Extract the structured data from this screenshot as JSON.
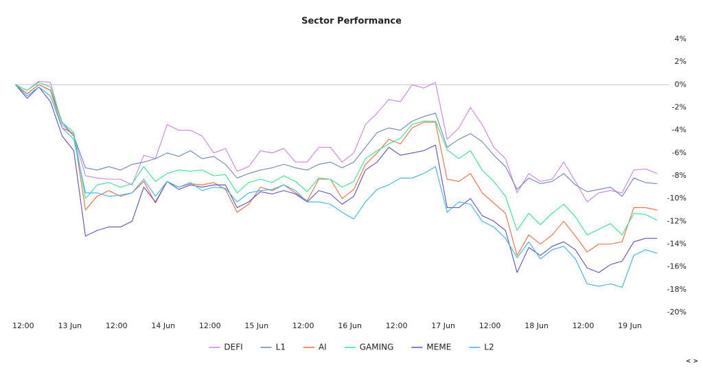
{
  "chart_data": {
    "type": "line",
    "title": "Sector Performance",
    "x": [
      10,
      13,
      16,
      19,
      22,
      25,
      28,
      31,
      34,
      37,
      40,
      43,
      46,
      49,
      52,
      55,
      58,
      61,
      64,
      67,
      70,
      73,
      76,
      79,
      82,
      85,
      88,
      91,
      94,
      97,
      100,
      103,
      106,
      109,
      112,
      115,
      118,
      121,
      124,
      127,
      130,
      133,
      136,
      139,
      142,
      145,
      148,
      151,
      154,
      157,
      160,
      163,
      166,
      169,
      172,
      175
    ],
    "xlim": [
      8.5,
      178.5
    ],
    "xticks": [
      {
        "value": 12,
        "label": "12:00"
      },
      {
        "value": 24,
        "label": "13 Jun"
      },
      {
        "value": 36,
        "label": "12:00"
      },
      {
        "value": 48,
        "label": "14 Jun"
      },
      {
        "value": 60,
        "label": "12:00"
      },
      {
        "value": 72,
        "label": "15 Jun"
      },
      {
        "value": 84,
        "label": "12:00"
      },
      {
        "value": 96,
        "label": "16 Jun"
      },
      {
        "value": 108,
        "label": "12:00"
      },
      {
        "value": 120,
        "label": "17 Jun"
      },
      {
        "value": 132,
        "label": "12:00"
      },
      {
        "value": 144,
        "label": "18 Jun"
      },
      {
        "value": 156,
        "label": "12:00"
      },
      {
        "value": 168,
        "label": "19 Jun"
      }
    ],
    "ylim": [
      -20,
      4
    ],
    "yticks": [
      {
        "value": 4,
        "label": "4%"
      },
      {
        "value": 2,
        "label": "2%"
      },
      {
        "value": 0,
        "label": "0%"
      },
      {
        "value": -2,
        "label": "-2%"
      },
      {
        "value": -4,
        "label": "-4%"
      },
      {
        "value": -6,
        "label": "-6%"
      },
      {
        "value": -8,
        "label": "-8%"
      },
      {
        "value": -10,
        "label": "-10%"
      },
      {
        "value": -12,
        "label": "-12%"
      },
      {
        "value": -14,
        "label": "-14%"
      },
      {
        "value": -16,
        "label": "-16%"
      },
      {
        "value": -18,
        "label": "-18%"
      },
      {
        "value": -20,
        "label": "-20%"
      }
    ],
    "grid": false,
    "zero_line": true,
    "legend": "bottom",
    "series": [
      {
        "name": "DEFI",
        "color": "#d17ef0",
        "values": [
          0,
          -0.5,
          0.3,
          0.2,
          -3.5,
          -4.5,
          -8,
          -8.2,
          -8.3,
          -8.3,
          -8.8,
          -6.2,
          -6.5,
          -3.5,
          -4,
          -4,
          -4.5,
          -6,
          -5.6,
          -7.6,
          -7.2,
          -5.8,
          -6,
          -5.6,
          -6.8,
          -6.8,
          -5.5,
          -5.5,
          -6.8,
          -6,
          -3.5,
          -2.5,
          -1.3,
          -1.5,
          0,
          -0.3,
          0.2,
          -4.8,
          -3.8,
          -2,
          -3.5,
          -5.5,
          -6.5,
          -9.5,
          -7.8,
          -8.5,
          -8.3,
          -6.8,
          -8.5,
          -10.3,
          -9.5,
          -9.3,
          -9.5,
          -7.5,
          -7.4,
          -7.8
        ]
      },
      {
        "name": "L1",
        "color": "#6b86b8",
        "values": [
          0,
          -0.8,
          0,
          -0.5,
          -3.3,
          -4.5,
          -7.3,
          -7.5,
          -7.2,
          -7.5,
          -7,
          -6.8,
          -6.5,
          -6,
          -6.3,
          -5.8,
          -6.5,
          -6.3,
          -7,
          -8.2,
          -7.8,
          -7.5,
          -7.3,
          -7,
          -7.3,
          -7.5,
          -7,
          -6.8,
          -7.3,
          -6.8,
          -5.5,
          -4.2,
          -3.8,
          -4,
          -3.2,
          -2.8,
          -2.5,
          -5.5,
          -4.8,
          -4.3,
          -5,
          -6.2,
          -7.2,
          -9.2,
          -8.2,
          -8.7,
          -8.5,
          -7.8,
          -8.8,
          -9.4,
          -9.2,
          -9,
          -9.8,
          -8.2,
          -8.6,
          -8.7
        ]
      },
      {
        "name": "AI",
        "color": "#f26b3a",
        "values": [
          0,
          -0.8,
          0,
          -0.5,
          -3.8,
          -4.3,
          -11,
          -9.8,
          -9.3,
          -9.8,
          -9.5,
          -8.5,
          -10.4,
          -8.5,
          -9,
          -8.7,
          -8.8,
          -8.6,
          -9.2,
          -11.2,
          -10.5,
          -9,
          -9.3,
          -8.8,
          -9.5,
          -10.2,
          -8.3,
          -8.3,
          -10,
          -9.2,
          -7,
          -6,
          -4.8,
          -5.2,
          -3.8,
          -3.3,
          -3.3,
          -8.3,
          -8.5,
          -7.8,
          -9.5,
          -10.4,
          -11.3,
          -15,
          -13.2,
          -14,
          -13.2,
          -12,
          -13.3,
          -14.7,
          -14,
          -14,
          -13.8,
          -10.8,
          -10.8,
          -11
        ]
      },
      {
        "name": "GAMING",
        "color": "#2ee88a",
        "values": [
          0,
          -0.5,
          0.2,
          -0.2,
          -3.3,
          -4.2,
          -10,
          -8.8,
          -8.6,
          -9,
          -8.7,
          -7.2,
          -8.5,
          -7.8,
          -7.5,
          -7.6,
          -7.5,
          -8,
          -7.9,
          -9.5,
          -8.6,
          -8.3,
          -8.6,
          -8,
          -8.5,
          -9.4,
          -8.2,
          -8.3,
          -9,
          -8.5,
          -6.5,
          -5.8,
          -5.2,
          -4.7,
          -3.5,
          -3.2,
          -3.2,
          -5.7,
          -6.5,
          -5.8,
          -7.5,
          -8.5,
          -9.8,
          -12.8,
          -11.3,
          -12.3,
          -11.3,
          -10.5,
          -11.6,
          -13.2,
          -12.7,
          -12.2,
          -13.2,
          -11.3,
          -11.4,
          -11.9
        ]
      },
      {
        "name": "MEME",
        "color": "#5b4fc4",
        "values": [
          0,
          -1.2,
          -0.2,
          -1.5,
          -4.5,
          -5.8,
          -13.3,
          -12.8,
          -12.5,
          -12.5,
          -12,
          -9,
          -10.3,
          -8.5,
          -9.2,
          -8.8,
          -9,
          -8.8,
          -8.8,
          -10.8,
          -10.3,
          -9.4,
          -9.6,
          -9.3,
          -9.6,
          -10.3,
          -9.3,
          -9.6,
          -10.5,
          -9.8,
          -7.5,
          -6.8,
          -5.5,
          -6.2,
          -6,
          -5.8,
          -5.3,
          -10.8,
          -10.8,
          -10,
          -11.5,
          -12,
          -12.8,
          -16.5,
          -14.3,
          -15,
          -14.2,
          -13.8,
          -14.5,
          -16.1,
          -16.5,
          -15.8,
          -15.5,
          -13.8,
          -13.5,
          -13.5
        ]
      },
      {
        "name": "L2",
        "color": "#33b4f0",
        "values": [
          0,
          -1,
          -0.2,
          -1,
          -3.8,
          -4.8,
          -9.5,
          -9.5,
          -9.8,
          -9.7,
          -9.5,
          -8.3,
          -9.8,
          -8.5,
          -9,
          -8.6,
          -9.3,
          -9,
          -9.1,
          -10.3,
          -9.5,
          -9.3,
          -9.2,
          -8.8,
          -9.3,
          -10.3,
          -10.3,
          -10.5,
          -11.2,
          -11.8,
          -10.3,
          -9.2,
          -8.8,
          -8.2,
          -8.2,
          -7.8,
          -7.2,
          -11.2,
          -10.3,
          -10.5,
          -12,
          -12.5,
          -13.5,
          -15.2,
          -13.8,
          -15.3,
          -14.5,
          -14.2,
          -15.3,
          -17.5,
          -17.7,
          -17.5,
          -17.8,
          -15,
          -14.5,
          -14.8
        ]
      }
    ]
  },
  "nav_label": "< >"
}
